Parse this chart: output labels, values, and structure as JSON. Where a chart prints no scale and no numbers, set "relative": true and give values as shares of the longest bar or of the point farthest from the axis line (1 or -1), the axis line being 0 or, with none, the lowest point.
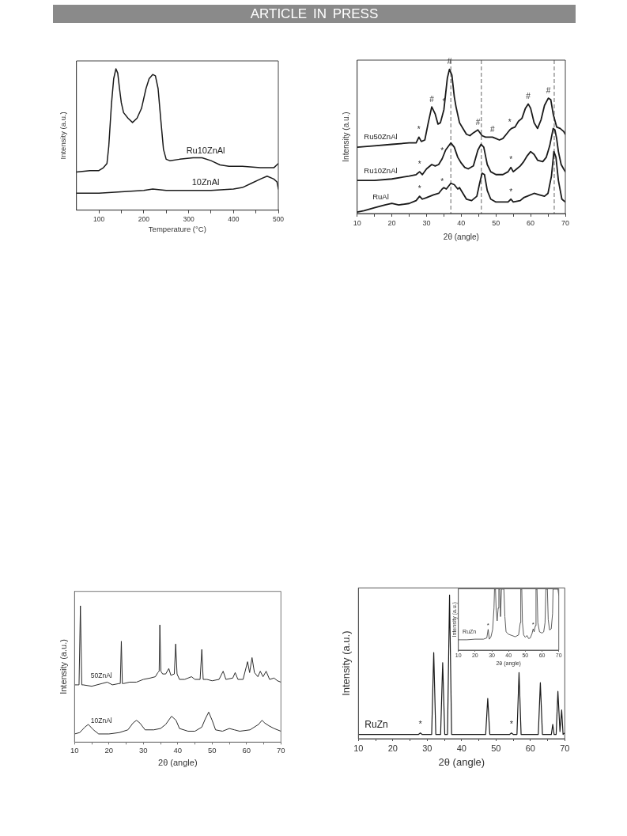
{
  "chart_data": [
    {
      "type": "other",
      "title": "ARTICLE IN PRESS"
    },
    {
      "type": "line",
      "relative": true,
      "xlabel": "Temperature (°C)",
      "ylabel": "Intensity (a.u.)",
      "xlim": [
        50,
        500
      ],
      "xticks": [
        100,
        {
          "value": 150,
          "label": null
        },
        200,
        {
          "value": 250,
          "label": null
        },
        300,
        {
          "value": 350,
          "label": null
        },
        400,
        {
          "value": 450,
          "label": null
        },
        500
      ],
      "marker": "none",
      "series": [
        {
          "name": "Ru10ZnAl",
          "color": "#1a1a1a",
          "x": [
            50,
            80,
            100,
            110,
            118,
            122,
            128,
            133,
            138,
            142,
            146,
            150,
            155,
            165,
            175,
            185,
            195,
            205,
            212,
            220,
            226,
            232,
            238,
            244,
            250,
            258,
            280,
            310,
            330,
            350,
            370,
            390,
            420,
            460,
            475,
            490,
            500
          ],
          "values": [
            0.27,
            0.28,
            0.28,
            0.3,
            0.33,
            0.45,
            0.75,
            0.93,
            1,
            0.97,
            0.86,
            0.76,
            0.69,
            0.65,
            0.62,
            0.65,
            0.72,
            0.86,
            0.93,
            0.96,
            0.95,
            0.86,
            0.64,
            0.43,
            0.36,
            0.35,
            0.36,
            0.37,
            0.37,
            0.35,
            0.32,
            0.31,
            0.31,
            0.3,
            0.3,
            0.3,
            0.33
          ]
        },
        {
          "name": "10ZnAl",
          "color": "#1a1a1a",
          "x": [
            50,
            100,
            150,
            200,
            220,
            250,
            300,
            350,
            400,
            420,
            440,
            460,
            475,
            490,
            497,
            500
          ],
          "values": [
            0.12,
            0.12,
            0.13,
            0.14,
            0.15,
            0.14,
            0.14,
            0.14,
            0.15,
            0.16,
            0.19,
            0.22,
            0.24,
            0.22,
            0.2,
            0.15
          ]
        }
      ]
    },
    {
      "type": "line",
      "relative": true,
      "xlabel": "2θ (angle)",
      "ylabel": "Intensity (a.u.)",
      "xlim": [
        10,
        70
      ],
      "xticks": [
        10,
        {
          "value": 15,
          "label": null
        },
        20,
        {
          "value": 25,
          "label": null
        },
        30,
        {
          "value": 35,
          "label": null
        },
        40,
        {
          "value": 45,
          "label": null
        },
        50,
        {
          "value": 55,
          "label": null
        },
        60,
        {
          "value": 65,
          "label": null
        },
        70
      ],
      "marker": "none",
      "ref_lines": [
        {
          "axis": "x",
          "value": 37,
          "color": "#666666",
          "line_style": "dashed"
        },
        {
          "axis": "x",
          "value": 45.8,
          "color": "#666666",
          "line_style": "dashed"
        },
        {
          "axis": "x",
          "value": 66.8,
          "color": "#666666",
          "line_style": "dashed"
        }
      ],
      "annotations": [
        {
          "text": "*",
          "x": 27.8,
          "y": 0.53
        },
        {
          "text": "#",
          "x": 31.5,
          "y": 0.74
        },
        {
          "text": "*",
          "x": 35,
          "y": 0.72
        },
        {
          "text": "#",
          "x": 36.6,
          "y": 1
        },
        {
          "text": "#",
          "x": 44.8,
          "y": 0.58
        },
        {
          "text": "#",
          "x": 49,
          "y": 0.53
        },
        {
          "text": "*",
          "x": 54,
          "y": 0.58
        },
        {
          "text": "#",
          "x": 59.3,
          "y": 0.76
        },
        {
          "text": "#",
          "x": 65.1,
          "y": 0.8
        },
        {
          "text": "*",
          "x": 28,
          "y": 0.29
        },
        {
          "text": "*",
          "x": 34.5,
          "y": 0.38
        },
        {
          "text": "*",
          "x": 54.3,
          "y": 0.32
        },
        {
          "text": "*",
          "x": 28,
          "y": 0.12
        },
        {
          "text": "*",
          "x": 34.5,
          "y": 0.17
        },
        {
          "text": "*",
          "x": 54.3,
          "y": 0.1
        }
      ],
      "series": [
        {
          "name": "Ru50ZnAl",
          "color": "#1a1a1a",
          "x": [
            10,
            15,
            20,
            25,
            27,
            27.8,
            28.5,
            29.5,
            30.5,
            31.5,
            32.5,
            33.3,
            34,
            35,
            36,
            36.6,
            37.3,
            38,
            38.5,
            39.5,
            40.5,
            41.5,
            42.5,
            43.5,
            44.8,
            46,
            47,
            48,
            49,
            50,
            51,
            52,
            53,
            54,
            54.5,
            55.5,
            56.5,
            57.5,
            58.5,
            59.3,
            60,
            61,
            62,
            63,
            64,
            65.1,
            65.8,
            66.5,
            67.5,
            68.5,
            69.5,
            70
          ],
          "values": [
            0.46,
            0.47,
            0.48,
            0.49,
            0.49,
            0.53,
            0.5,
            0.51,
            0.63,
            0.74,
            0.69,
            0.62,
            0.63,
            0.72,
            0.94,
            1,
            0.96,
            0.81,
            0.74,
            0.63,
            0.59,
            0.55,
            0.54,
            0.56,
            0.58,
            0.54,
            0.53,
            0.53,
            0.53,
            0.52,
            0.51,
            0.52,
            0.55,
            0.58,
            0.59,
            0.6,
            0.64,
            0.66,
            0.73,
            0.76,
            0.73,
            0.63,
            0.59,
            0.65,
            0.75,
            0.8,
            0.79,
            0.69,
            0.6,
            0.59,
            0.57,
            0.55
          ]
        },
        {
          "name": "Ru10ZnAl",
          "color": "#1a1a1a",
          "x": [
            10,
            15,
            20,
            25,
            27,
            28,
            28.8,
            30,
            31.5,
            32.5,
            33.5,
            34.5,
            35.5,
            37,
            38,
            39,
            40,
            41,
            42,
            43.5,
            44.8,
            45.7,
            46.5,
            47.5,
            48.5,
            50,
            52,
            53.5,
            54.3,
            55,
            56,
            57,
            58,
            59,
            60,
            61,
            62,
            63.5,
            64.5,
            65.5,
            66.5,
            67,
            67.5,
            68,
            68.8,
            69.5,
            70
          ],
          "values": [
            0.23,
            0.23,
            0.24,
            0.26,
            0.27,
            0.29,
            0.27,
            0.31,
            0.34,
            0.33,
            0.34,
            0.38,
            0.44,
            0.49,
            0.46,
            0.39,
            0.35,
            0.32,
            0.31,
            0.33,
            0.44,
            0.48,
            0.46,
            0.34,
            0.29,
            0.27,
            0.27,
            0.29,
            0.32,
            0.29,
            0.31,
            0.33,
            0.36,
            0.4,
            0.43,
            0.41,
            0.37,
            0.36,
            0.39,
            0.47,
            0.59,
            0.58,
            0.52,
            0.43,
            0.34,
            0.31,
            0.29
          ]
        },
        {
          "name": "RuAl",
          "color": "#1a1a1a",
          "x": [
            10,
            12,
            15,
            18,
            20,
            22,
            25,
            27,
            28,
            28.8,
            30,
            32,
            33.5,
            34.5,
            35,
            35.7,
            37,
            38,
            39,
            39.5,
            40.5,
            41.5,
            43,
            44.5,
            45.3,
            46,
            46.7,
            47.5,
            48.5,
            50,
            52,
            53.5,
            54.3,
            55,
            57,
            58,
            59,
            61,
            62.5,
            64,
            65,
            66,
            66.7,
            67.3,
            68,
            69,
            70
          ],
          "values": [
            0.01,
            0.02,
            0.04,
            0.06,
            0.07,
            0.06,
            0.07,
            0.09,
            0.12,
            0.1,
            0.11,
            0.13,
            0.14,
            0.17,
            0.18,
            0.17,
            0.21,
            0.2,
            0.17,
            0.18,
            0.14,
            0.1,
            0.09,
            0.12,
            0.21,
            0.28,
            0.27,
            0.16,
            0.1,
            0.08,
            0.08,
            0.08,
            0.1,
            0.08,
            0.09,
            0.11,
            0.12,
            0.14,
            0.13,
            0.12,
            0.14,
            0.26,
            0.43,
            0.39,
            0.23,
            0.1,
            0.08
          ]
        }
      ]
    },
    {
      "type": "line",
      "relative": true,
      "xlabel": "2θ (angle)",
      "ylabel": "Intensity (a.u.)",
      "xlim": [
        10,
        70
      ],
      "xticks": [
        10,
        {
          "value": 15,
          "label": null
        },
        20,
        {
          "value": 25,
          "label": null
        },
        30,
        {
          "value": 35,
          "label": null
        },
        40,
        {
          "value": 45,
          "label": null
        },
        50,
        {
          "value": 55,
          "label": null
        },
        60,
        {
          "value": 65,
          "label": null
        },
        70
      ],
      "marker": "none",
      "series": [
        {
          "name": "50ZnAl",
          "color": "#2b2b2b",
          "x": [
            10,
            11,
            11.3,
            11.7,
            12.1,
            12.5,
            15,
            18,
            19.5,
            21,
            23,
            23.3,
            23.6,
            23.9,
            24.3,
            26,
            28,
            30,
            32,
            33.5,
            34.2,
            34.6,
            34.8,
            35.1,
            35.6,
            36.5,
            37.4,
            38,
            39,
            39.4,
            39.8,
            40.5,
            42,
            44,
            45,
            46.5,
            47,
            47.4,
            48.5,
            50,
            52,
            53.2,
            54,
            56,
            56.7,
            57.5,
            59,
            60.3,
            60.9,
            61.6,
            62.3,
            63.3,
            64,
            64.8,
            65.7,
            66.7,
            68,
            69,
            70
          ],
          "values": [
            0.42,
            0.42,
            0.42,
            1,
            0.42,
            0.42,
            0.41,
            0.43,
            0.44,
            0.42,
            0.43,
            0.43,
            0.74,
            0.43,
            0.43,
            0.44,
            0.44,
            0.46,
            0.47,
            0.48,
            0.51,
            0.52,
            0.86,
            0.52,
            0.5,
            0.5,
            0.54,
            0.49,
            0.5,
            0.72,
            0.5,
            0.46,
            0.46,
            0.48,
            0.46,
            0.46,
            0.68,
            0.46,
            0.46,
            0.45,
            0.46,
            0.52,
            0.46,
            0.47,
            0.51,
            0.46,
            0.46,
            0.59,
            0.51,
            0.62,
            0.51,
            0.48,
            0.52,
            0.48,
            0.52,
            0.46,
            0.47,
            0.45,
            0.44
          ]
        },
        {
          "name": "10ZnAl",
          "color": "#2b2b2b",
          "x": [
            10,
            11.5,
            13,
            14,
            15.5,
            17,
            20,
            23,
            25.5,
            27,
            28,
            29,
            30.5,
            33,
            35,
            36.5,
            38.2,
            39.5,
            40.5,
            43,
            45,
            47,
            48,
            49,
            50,
            51,
            53,
            55,
            56.5,
            58,
            61,
            63.5,
            64.5,
            65.3,
            66.5,
            68,
            70
          ],
          "values": [
            0.06,
            0.07,
            0.11,
            0.13,
            0.09,
            0.06,
            0.06,
            0.07,
            0.09,
            0.14,
            0.16,
            0.14,
            0.09,
            0.09,
            0.1,
            0.13,
            0.19,
            0.16,
            0.1,
            0.08,
            0.08,
            0.11,
            0.17,
            0.22,
            0.16,
            0.09,
            0.08,
            0.1,
            0.09,
            0.08,
            0.09,
            0.13,
            0.16,
            0.14,
            0.12,
            0.1,
            0.08
          ]
        }
      ]
    },
    {
      "type": "line",
      "relative": true,
      "xlabel": "2θ (angle)",
      "ylabel": "Intensity (a.u.)",
      "xlim": [
        10,
        70
      ],
      "xticks": [
        10,
        {
          "value": 15,
          "label": null
        },
        20,
        {
          "value": 25,
          "label": null
        },
        30,
        {
          "value": 35,
          "label": null
        },
        40,
        {
          "value": 45,
          "label": null
        },
        50,
        {
          "value": 55,
          "label": null
        },
        60,
        {
          "value": 65,
          "label": null
        },
        70
      ],
      "marker": "none",
      "annotations": [
        {
          "text": "*",
          "x": 28,
          "y": 0.04
        },
        {
          "text": "*",
          "x": 54.5,
          "y": 0.04
        }
      ],
      "series": [
        {
          "name": "RuZn",
          "color": "#1a1a1a",
          "x": [
            10,
            25,
            27.5,
            28,
            28.5,
            31.3,
            31.9,
            32.5,
            33.9,
            34.5,
            35.1,
            35.9,
            36.5,
            37.1,
            47,
            47.6,
            48.2,
            54,
            54.5,
            55,
            56.1,
            56.7,
            57.3,
            62.3,
            62.9,
            63.5,
            66.1,
            66.5,
            66.9,
            67.5,
            68,
            68.6,
            69.1,
            69.5,
            70
          ],
          "values": [
            0.03,
            0.03,
            0.03,
            0.04,
            0.03,
            0.03,
            0.6,
            0.03,
            0.03,
            0.53,
            0.03,
            0.03,
            1,
            0.03,
            0.03,
            0.28,
            0.03,
            0.03,
            0.04,
            0.03,
            0.03,
            0.46,
            0.03,
            0.03,
            0.39,
            0.03,
            0.03,
            0.1,
            0.03,
            0.03,
            0.33,
            0.05,
            0.2,
            0.03,
            0.04
          ]
        }
      ]
    },
    {
      "type": "line",
      "relative": true,
      "xlabel": "2θ (angle)",
      "ylabel": "Intensity (a.u.)",
      "xlim": [
        10,
        70
      ],
      "xticks": [
        10,
        20,
        30,
        40,
        50,
        60,
        70
      ],
      "marker": "none",
      "annotations": [
        {
          "text": "*",
          "x": 27.8,
          "y": 0.34
        },
        {
          "text": "*",
          "x": 54.7,
          "y": 0.35
        }
      ],
      "series": [
        {
          "name": "RuZn",
          "color": "#333333",
          "x": [
            10,
            15,
            20,
            25,
            27,
            27.8,
            28.5,
            29.5,
            30.5,
            31.3,
            31.6,
            32.2,
            32.6,
            33.2,
            33.8,
            34.2,
            34.8,
            35.2,
            35.8,
            37.2,
            37.8,
            38.5,
            40,
            42,
            44,
            46,
            47,
            47.3,
            47.9,
            48.3,
            49,
            50,
            51,
            52,
            53,
            54,
            54.7,
            55.3,
            56,
            56.4,
            57,
            57.5,
            58.5,
            60,
            61,
            61.8,
            62.3,
            63.2,
            63.7,
            64.5,
            65.5,
            66.3,
            66.6,
            69.5,
            70
          ],
          "values": [
            0.17,
            0.17,
            0.18,
            0.18,
            0.2,
            0.34,
            0.18,
            0.22,
            0.34,
            0.69,
            1,
            1,
            0.65,
            0.48,
            0.69,
            1,
            1,
            0.55,
            1,
            1,
            0.55,
            0.3,
            0.26,
            0.24,
            0.22,
            0.25,
            0.45,
            1,
            1,
            0.45,
            0.25,
            0.21,
            0.24,
            0.19,
            0.2,
            0.27,
            0.35,
            0.3,
            0.4,
            1,
            1,
            0.45,
            0.3,
            0.28,
            0.3,
            0.45,
            1,
            1,
            0.5,
            0.33,
            0.35,
            0.6,
            1,
            1,
            0.9
          ]
        }
      ]
    }
  ]
}
